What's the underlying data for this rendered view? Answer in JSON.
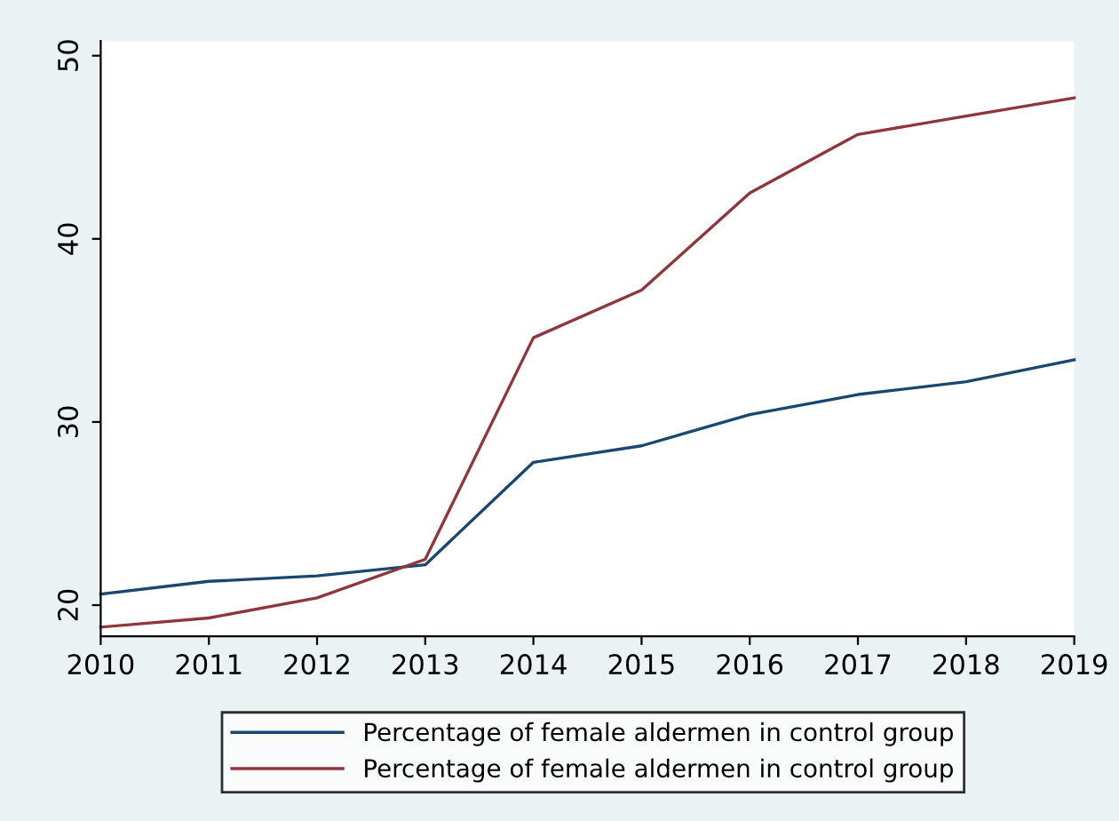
{
  "chart_data": {
    "type": "line",
    "x": [
      2010,
      2011,
      2012,
      2013,
      2014,
      2015,
      2016,
      2017,
      2018,
      2019
    ],
    "series": [
      {
        "name": "Percentage of female aldermen in control group",
        "color": "#1a476f",
        "values": [
          20.6,
          21.3,
          21.6,
          22.2,
          27.8,
          28.7,
          30.4,
          31.5,
          32.2,
          33.4
        ]
      },
      {
        "name": "Percentage of female aldermen in control group",
        "color": "#90353b",
        "values": [
          18.8,
          19.3,
          20.4,
          22.5,
          34.6,
          37.2,
          42.5,
          45.7,
          46.7,
          47.7
        ]
      }
    ],
    "xlim": [
      2010,
      2019
    ],
    "xticks": [
      2010,
      2011,
      2012,
      2013,
      2014,
      2015,
      2016,
      2017,
      2018,
      2019
    ],
    "ylim": [
      18.3,
      50.8
    ],
    "yticks": [
      20,
      30,
      40,
      50
    ],
    "grid": false,
    "legend": "bottom",
    "marker": "none",
    "line_style": "solid"
  }
}
